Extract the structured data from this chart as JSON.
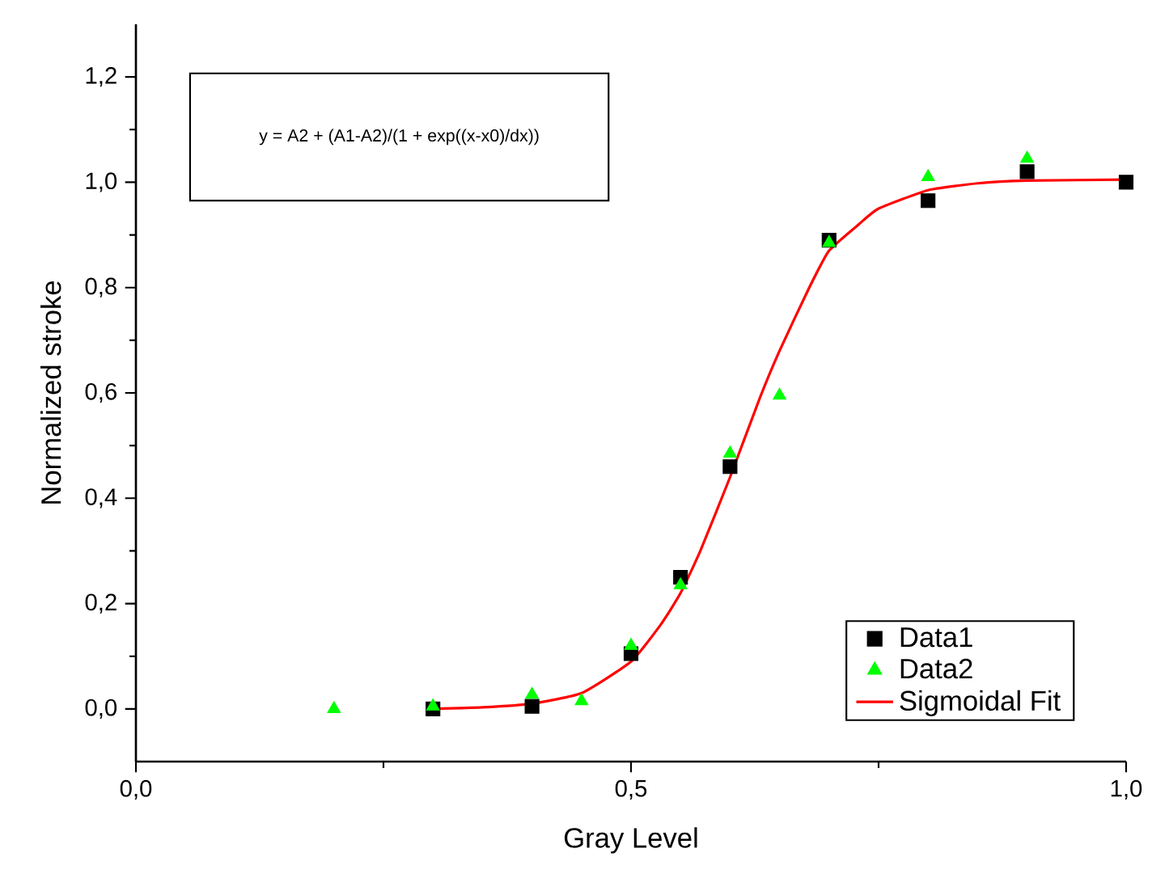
{
  "chart_data": {
    "type": "scatter",
    "xlabel": "Gray Level",
    "ylabel": "Normalized stroke",
    "annotations": [
      "y = A2 + (A1-A2)/(1 + exp((x-x0)/dx))"
    ],
    "xlim": [
      0,
      1
    ],
    "ylim": [
      -0.1,
      1.3
    ],
    "xticks": [
      {
        "value": 0,
        "label": "0,0"
      },
      {
        "value": 0.5,
        "label": "0,5"
      },
      {
        "value": 1,
        "label": "1,0"
      }
    ],
    "yticks": [
      {
        "value": 0,
        "label": "0,0"
      },
      {
        "value": 0.2,
        "label": "0,2"
      },
      {
        "value": 0.4,
        "label": "0,4"
      },
      {
        "value": 0.6,
        "label": "0,6"
      },
      {
        "value": 0.8,
        "label": "0,8"
      },
      {
        "value": 1.0,
        "label": "1,0"
      },
      {
        "value": 1.2,
        "label": "1,2"
      }
    ],
    "legend": "bottom right",
    "series": [
      {
        "name": "Data1",
        "marker": "square",
        "color": "#000000",
        "x": [
          0.3,
          0.4,
          0.5,
          0.55,
          0.6,
          0.7,
          0.8,
          0.9,
          1.0
        ],
        "values": [
          0.0,
          0.005,
          0.105,
          0.25,
          0.46,
          0.89,
          0.965,
          1.02,
          1.0
        ]
      },
      {
        "name": "Data2",
        "marker": "triangle",
        "color": "#00ff00",
        "x": [
          0.2,
          0.3,
          0.4,
          0.45,
          0.5,
          0.55,
          0.6,
          0.65,
          0.7,
          0.8,
          0.9
        ],
        "values": [
          0.0,
          0.005,
          0.027,
          0.015,
          0.12,
          0.235,
          0.485,
          0.595,
          0.885,
          1.01,
          1.045
        ]
      },
      {
        "name": "Sigmoidal Fit",
        "type": "line",
        "marker": "none",
        "color": "#ff0000",
        "x": [
          0.3,
          0.35,
          0.4,
          0.45,
          0.5,
          0.53,
          0.55,
          0.57,
          0.6,
          0.63,
          0.65,
          0.68,
          0.7,
          0.73,
          0.75,
          0.8,
          0.85,
          0.9,
          1.0
        ],
        "values": [
          0.0,
          0.003,
          0.01,
          0.03,
          0.09,
          0.16,
          0.22,
          0.3,
          0.44,
          0.59,
          0.68,
          0.8,
          0.87,
          0.92,
          0.95,
          0.985,
          0.998,
          1.003,
          1.005
        ]
      }
    ]
  }
}
